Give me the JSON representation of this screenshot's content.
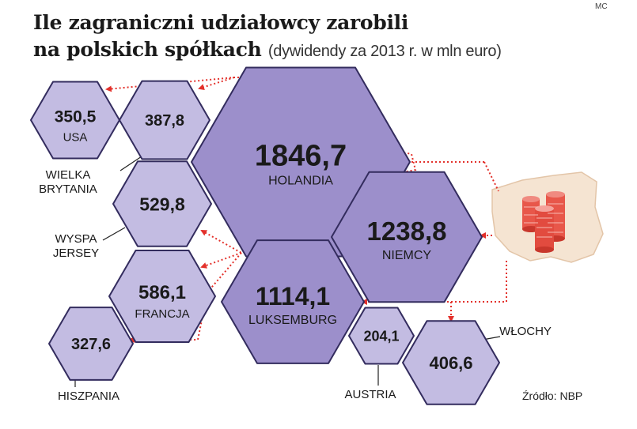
{
  "title_line1": "Ile zagraniczni udziałowcy zarobili",
  "title_line2": "na polskich spółkach",
  "subtitle": "(dywidendy za 2013 r. w mln euro)",
  "credit": "MC",
  "source": "Źródło: NBP",
  "colors": {
    "fill_light": "#c3bce2",
    "fill_dark": "#9c8fcb",
    "stroke": "#332c5e",
    "arrow": "#e3312b",
    "coins": "#e8574a",
    "poland": "#f5e4d2"
  },
  "chart_data": {
    "type": "hexagon-bubble",
    "title": "Ile zagraniczni udziałowcy zarobili na polskich spółkach",
    "subtitle": "(dywidendy za 2013 r. w mln euro)",
    "unit": "mln euro",
    "items": [
      {
        "name": "USA",
        "value": 350.5,
        "value_label": "350,5"
      },
      {
        "name": "WIELKA BRYTANIA",
        "value": 387.8,
        "value_label": "387,8"
      },
      {
        "name": "HOLANDIA",
        "value": 1846.7,
        "value_label": "1846,7"
      },
      {
        "name": "WYSPA JERSEY",
        "value": 529.8,
        "value_label": "529,8"
      },
      {
        "name": "NIEMCY",
        "value": 1238.8,
        "value_label": "1238,8"
      },
      {
        "name": "FRANCJA",
        "value": 586.1,
        "value_label": "586,1"
      },
      {
        "name": "LUKSEMBURG",
        "value": 1114.1,
        "value_label": "1114,1"
      },
      {
        "name": "HISZPANIA",
        "value": 327.6,
        "value_label": "327,6"
      },
      {
        "name": "AUSTRIA",
        "value": 204.1,
        "value_label": "204,1"
      },
      {
        "name": "WŁOCHY",
        "value": 406.6,
        "value_label": "406,6"
      }
    ]
  },
  "labels": {
    "usa": "USA",
    "uk_1": "WIELKA",
    "uk_2": "BRYTANIA",
    "holandia": "HOLANDIA",
    "jersey_1": "WYSPA",
    "jersey_2": "JERSEY",
    "niemcy": "NIEMCY",
    "francja": "FRANCJA",
    "luksemburg": "LUKSEMBURG",
    "hiszpania": "HISZPANIA",
    "austria": "AUSTRIA",
    "wlochy": "WŁOCHY"
  }
}
